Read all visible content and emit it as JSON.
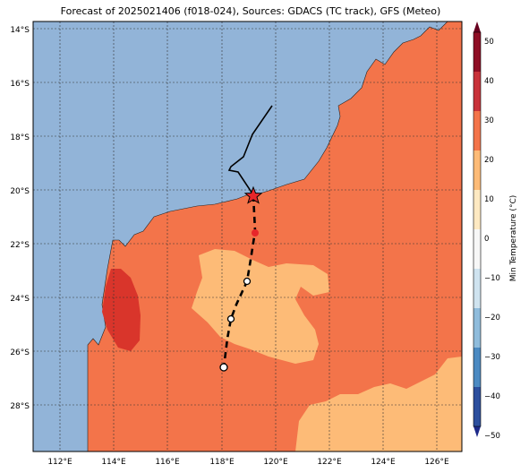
{
  "title": "Forecast of 2025021406 (f018-024), Sources: GDACS (TC track), GFS (Meteo)",
  "colorbar_label": "Min Temperature (°C)",
  "lat_ticks": [
    "14°S",
    "16°S",
    "18°S",
    "20°S",
    "22°S",
    "24°S",
    "26°S",
    "28°S"
  ],
  "lon_ticks": [
    "112°E",
    "114°E",
    "116°E",
    "118°E",
    "120°E",
    "122°E",
    "124°E",
    "126°E"
  ],
  "colorbar_ticks": [
    "50",
    "40",
    "30",
    "20",
    "10",
    "0",
    "−10",
    "−20",
    "−30",
    "−40",
    "−50"
  ],
  "colors": {
    "ocean": "#92b4d8",
    "land_warm": "#f3744a",
    "land_hot": "#d9352b",
    "land_mild": "#fdbb77",
    "track": "#000000",
    "current_position": "#e8262a"
  },
  "colorbar_colors": [
    "#67001f",
    "#b2182b",
    "#d6604d",
    "#f4a582",
    "#fddbc7",
    "#f7f7f7",
    "#d1e5f0",
    "#92c5de",
    "#4393c3",
    "#2166ac",
    "#053061"
  ],
  "storm_marker": "star"
}
